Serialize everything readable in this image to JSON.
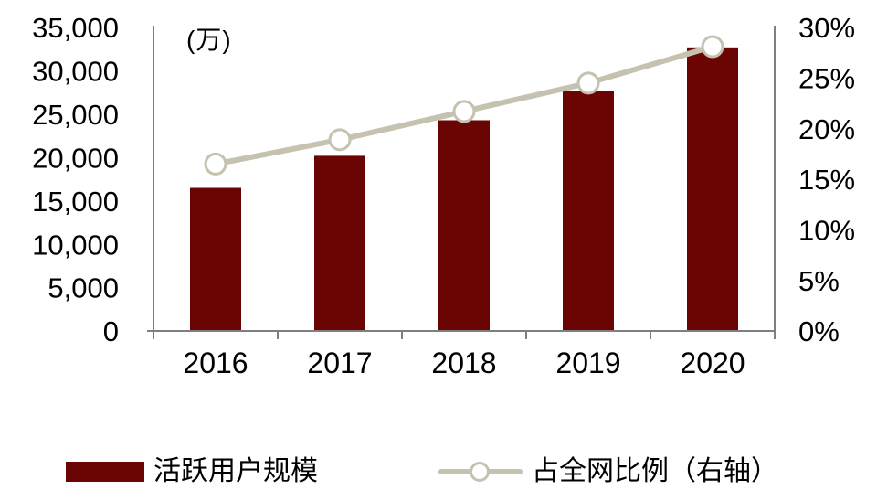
{
  "chart_data": {
    "type": "bar",
    "subtype": "bar-line-combo",
    "title": "",
    "unit_label": "(万)",
    "categories": [
      "2016",
      "2017",
      "2018",
      "2019",
      "2020"
    ],
    "series": [
      {
        "name": "活跃用户规模",
        "type": "bar",
        "axis": "left",
        "values": [
          16500,
          20200,
          24300,
          27700,
          32700
        ],
        "color": "#6b0504"
      },
      {
        "name": "占全网比例（右轴）",
        "type": "line",
        "axis": "right",
        "values": [
          16.5,
          18.9,
          21.7,
          24.5,
          28.1
        ],
        "color": "#c5c2b0",
        "marker": "open-circle-white"
      }
    ],
    "left_axis": {
      "min": 0,
      "max": 35000,
      "step": 5000,
      "tick_labels": [
        "0",
        "5,000",
        "10,000",
        "15,000",
        "20,000",
        "25,000",
        "30,000",
        "35,000"
      ]
    },
    "right_axis": {
      "min": 0,
      "max": 30,
      "step": 5,
      "tick_labels": [
        "0%",
        "5%",
        "10%",
        "15%",
        "20%",
        "25%",
        "30%"
      ]
    },
    "grid": false,
    "legend_position": "bottom",
    "axis_color": "#7f7f7f",
    "text_color": "#000000"
  },
  "legend": {
    "bars": "活跃用户规模",
    "line": "占全网比例（右轴）"
  }
}
